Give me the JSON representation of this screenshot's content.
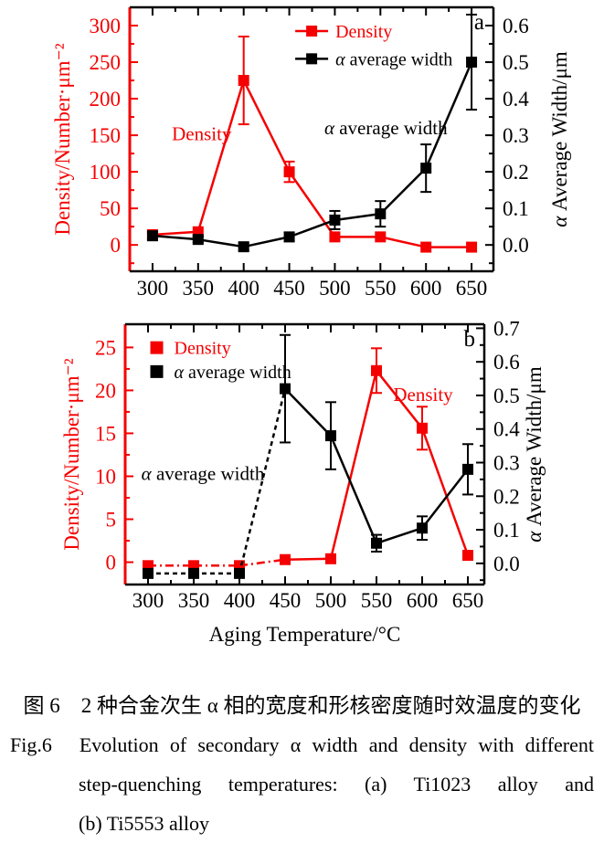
{
  "colors": {
    "density_red": "#f50000",
    "width_black": "#000000"
  },
  "caption": {
    "chinese": "图 6　2 种合金次生 α 相的宽度和形核密度随时效温度的变化",
    "fig_label": "Fig.6",
    "english_line1": "Evolution of secondary α width and density with different",
    "english_line2": "step-quenching temperatures: (a) Ti1023 alloy and",
    "english_line3": "(b) Ti5553 alloy"
  },
  "chart_data": [
    {
      "type": "line",
      "panel": "a",
      "corner_label": "a",
      "x": [
        300,
        350,
        400,
        450,
        500,
        550,
        600,
        650
      ],
      "x_minor_step": 25,
      "x_range": [
        275,
        674
      ],
      "x_label": null,
      "left_axis": {
        "title": "Density/Number·μm⁻²",
        "color": "#f50000",
        "ticks": [
          0,
          50,
          100,
          150,
          200,
          250,
          300
        ],
        "minor_step": 25,
        "range": [
          -36,
          325
        ]
      },
      "right_axis": {
        "title": "α Average Width/μm",
        "color": "#000000",
        "ticks": [
          0.0,
          0.1,
          0.2,
          0.3,
          0.4,
          0.5,
          0.6
        ],
        "minor_step": 0.05,
        "range": [
          -0.072,
          0.65
        ],
        "decimals": 1
      },
      "series": [
        {
          "name": "Density",
          "axis": "left",
          "color": "#f50000",
          "marker": "square",
          "dash_segments": 0,
          "values": [
            14,
            18,
            225,
            100,
            11,
            11,
            -3,
            -3
          ],
          "errors": [
            0,
            0,
            60,
            14,
            0,
            0,
            0,
            0
          ]
        },
        {
          "name": "α average width",
          "axis": "right",
          "color": "#000000",
          "marker": "square",
          "dash_segments": 0,
          "values": [
            0.025,
            0.015,
            -0.005,
            0.022,
            0.068,
            0.085,
            0.21,
            0.5
          ],
          "errors": [
            0.01,
            0.008,
            0.01,
            0.012,
            0.025,
            0.035,
            0.065,
            0.13
          ]
        }
      ],
      "legend": {
        "style": "line",
        "fx": 0.455,
        "fy": 0.09,
        "row_fh": 0.105
      },
      "annotations": [
        {
          "text": "Density",
          "color": "#f50000",
          "x": 354,
          "y": 152
        },
        {
          "text": "α average width",
          "color": "#000000",
          "x": 556,
          "y": 160
        }
      ]
    },
    {
      "type": "line",
      "panel": "b",
      "corner_label": "b",
      "x": [
        300,
        350,
        400,
        450,
        500,
        550,
        600,
        650
      ],
      "x_minor_step": 25,
      "x_range": [
        275,
        668
      ],
      "x_label": "Aging Temperature/°C",
      "left_axis": {
        "title": "Density/Number·μm⁻²",
        "color": "#f50000",
        "ticks": [
          0,
          5,
          10,
          15,
          20,
          25
        ],
        "minor_step": 2.5,
        "range": [
          -2.6,
          27.7
        ]
      },
      "right_axis": {
        "title": "α Average Width/μm",
        "color": "#000000",
        "ticks": [
          0.0,
          0.1,
          0.2,
          0.3,
          0.4,
          0.5,
          0.6,
          0.7
        ],
        "minor_step": 0.05,
        "range": [
          -0.063,
          0.712
        ],
        "decimals": 1
      },
      "series": [
        {
          "name": "Density",
          "axis": "left",
          "color": "#f50000",
          "marker": "square",
          "dash_segments": 3,
          "values": [
            -0.4,
            -0.4,
            -0.4,
            0.3,
            0.4,
            22.3,
            15.6,
            0.8
          ],
          "errors": [
            0,
            0,
            0,
            0,
            0,
            2.6,
            2.5,
            0
          ]
        },
        {
          "name": "α average width",
          "axis": "right",
          "color": "#000000",
          "marker": "square",
          "dash_segments": 3,
          "values": [
            -0.03,
            -0.03,
            -0.03,
            0.52,
            0.38,
            0.06,
            0.105,
            0.28
          ],
          "errors": [
            0,
            0,
            0,
            0.16,
            0.1,
            0.025,
            0.035,
            0.075
          ]
        }
      ],
      "legend": {
        "style": "square",
        "fx": 0.07,
        "fy": 0.09,
        "row_fh": 0.092
      },
      "annotations": [
        {
          "text": "Density",
          "color": "#f50000",
          "x": 601,
          "y": 19.5
        },
        {
          "text": "α average width",
          "color": "#000000",
          "x": 360,
          "y": 10.3
        }
      ]
    }
  ]
}
